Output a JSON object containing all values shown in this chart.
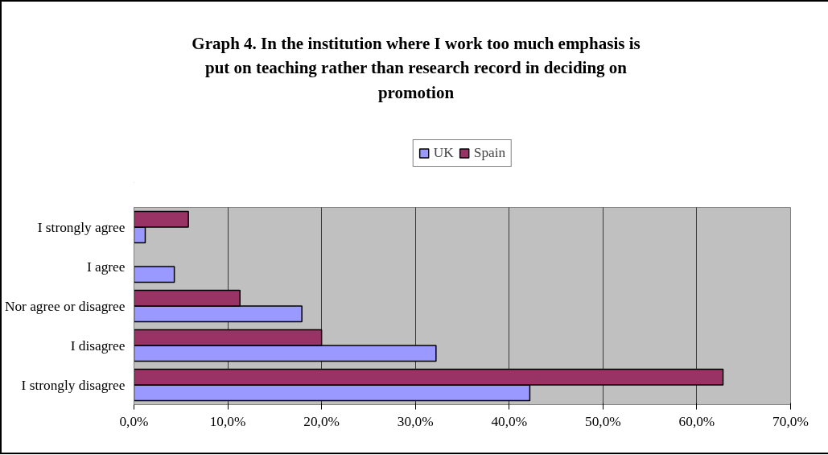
{
  "chart_data": {
    "type": "bar",
    "orientation": "horizontal",
    "title": "Graph 4. In the institution where I work too much emphasis is put on teaching rather than research record in deciding on promotion",
    "categories": [
      "I strongly agree",
      "I agree",
      "Nor agree or disagree",
      "I disagree",
      "I strongly disagree"
    ],
    "series": [
      {
        "name": "UK",
        "color": "#9999ff",
        "values": [
          1.2,
          4.3,
          17.9,
          32.2,
          42.2
        ]
      },
      {
        "name": "Spain",
        "color": "#993366",
        "values": [
          5.8,
          null,
          11.3,
          20.0,
          62.8
        ]
      }
    ],
    "xlim": [
      0,
      70
    ],
    "xticks": [
      {
        "value": 0,
        "label": "0,0%"
      },
      {
        "value": 10,
        "label": "10,0%"
      },
      {
        "value": 20,
        "label": "20,0%"
      },
      {
        "value": 30,
        "label": "30,0%"
      },
      {
        "value": 40,
        "label": "40,0%"
      },
      {
        "value": 50,
        "label": "50,0%"
      },
      {
        "value": 60,
        "label": "60,0%"
      },
      {
        "value": 70,
        "label": "70,0%"
      }
    ],
    "grid": "x",
    "legend": "top"
  }
}
